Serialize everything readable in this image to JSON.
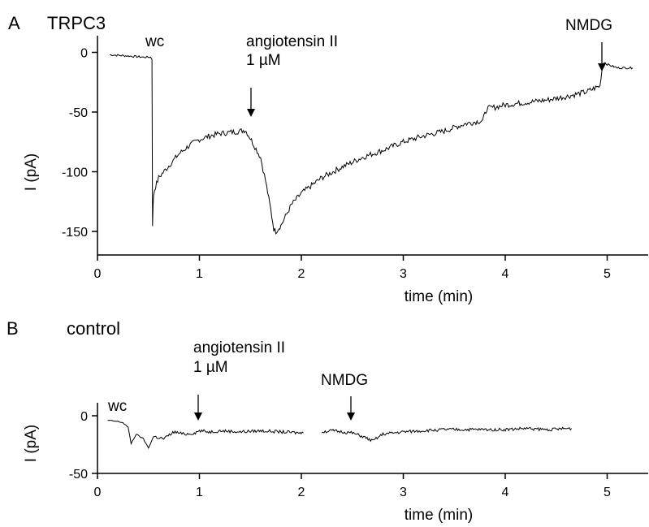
{
  "chart_data": [
    {
      "type": "line",
      "panel_letter": "A",
      "title": "TRPC3",
      "xlabel": "time (min)",
      "ylabel": "I (pA)",
      "xlim": [
        0,
        5.4
      ],
      "ylim": [
        -172,
        5
      ],
      "x_ticks": [
        0,
        1,
        2,
        3,
        4,
        5
      ],
      "y_ticks": [
        0,
        -50,
        -100,
        -150
      ],
      "grid": false,
      "series": [
        {
          "x": [
            0.12,
            0.3,
            0.45,
            0.52,
            0.535,
            0.54,
            0.545,
            0.55,
            0.56,
            0.6,
            0.7,
            0.8,
            0.9,
            1.0,
            1.1,
            1.2,
            1.3,
            1.4,
            1.45,
            1.5,
            1.6,
            1.65,
            1.7,
            1.73,
            1.75,
            1.8,
            1.9,
            2.0,
            2.2,
            2.4,
            2.6,
            2.8,
            3.0,
            3.2,
            3.4,
            3.6,
            3.78,
            3.82,
            3.9,
            4.0,
            4.2,
            4.4,
            4.6,
            4.8,
            4.93,
            4.95,
            4.97,
            5.0,
            5.1,
            5.25
          ],
          "y": [
            -2,
            -3,
            -4,
            -4,
            -6,
            -145,
            -130,
            -120,
            -115,
            -105,
            -95,
            -85,
            -78,
            -73,
            -70,
            -68,
            -67,
            -66,
            -65,
            -72,
            -88,
            -108,
            -132,
            -148,
            -150,
            -145,
            -128,
            -118,
            -105,
            -96,
            -88,
            -82,
            -75,
            -70,
            -66,
            -60,
            -57,
            -47,
            -46,
            -44,
            -42,
            -40,
            -37,
            -33,
            -28,
            -14,
            -8,
            -10,
            -13,
            -13
          ]
        }
      ],
      "annotations": [
        {
          "label": "wc",
          "x": 0.52
        },
        {
          "label": "angiotensin II",
          "sublabel": "1 µM",
          "x": 1.47
        },
        {
          "label": "NMDG",
          "x": 4.93
        }
      ]
    },
    {
      "type": "line",
      "panel_letter": "B",
      "title": "control",
      "xlabel": "time (min)",
      "ylabel": "I (pA)",
      "xlim": [
        0,
        5.4
      ],
      "ylim": [
        -50,
        5
      ],
      "x_ticks": [
        0,
        1,
        2,
        3,
        4,
        5
      ],
      "y_ticks": [
        0,
        -50
      ],
      "grid": false,
      "series": [
        {
          "x": [
            0.1,
            0.2,
            0.25,
            0.3,
            0.33,
            0.38,
            0.45,
            0.5,
            0.55,
            0.65,
            0.75,
            0.85,
            0.95,
            1.0,
            1.1,
            1.2,
            1.4,
            1.6,
            1.8,
            2.02
          ],
          "y": [
            -4,
            -5,
            -6,
            -10,
            -24,
            -16,
            -20,
            -28,
            -18,
            -20,
            -14,
            -16,
            -15,
            -13,
            -14,
            -13,
            -14,
            -13,
            -14,
            -15
          ]
        },
        {
          "x": [
            2.2,
            2.3,
            2.4,
            2.5,
            2.6,
            2.7,
            2.8,
            3.0,
            3.2,
            3.4,
            3.6,
            3.8,
            4.0,
            4.2,
            4.4,
            4.65
          ],
          "y": [
            -14,
            -13,
            -14,
            -15,
            -18,
            -22,
            -16,
            -14,
            -13,
            -12,
            -12,
            -12,
            -12,
            -11,
            -12,
            -11
          ]
        }
      ],
      "annotations": [
        {
          "label": "wc",
          "x": 0.12
        },
        {
          "label": "angiotensin II",
          "sublabel": "1 µM",
          "x": 0.98
        },
        {
          "label": "NMDG",
          "x": 2.48
        }
      ]
    }
  ]
}
